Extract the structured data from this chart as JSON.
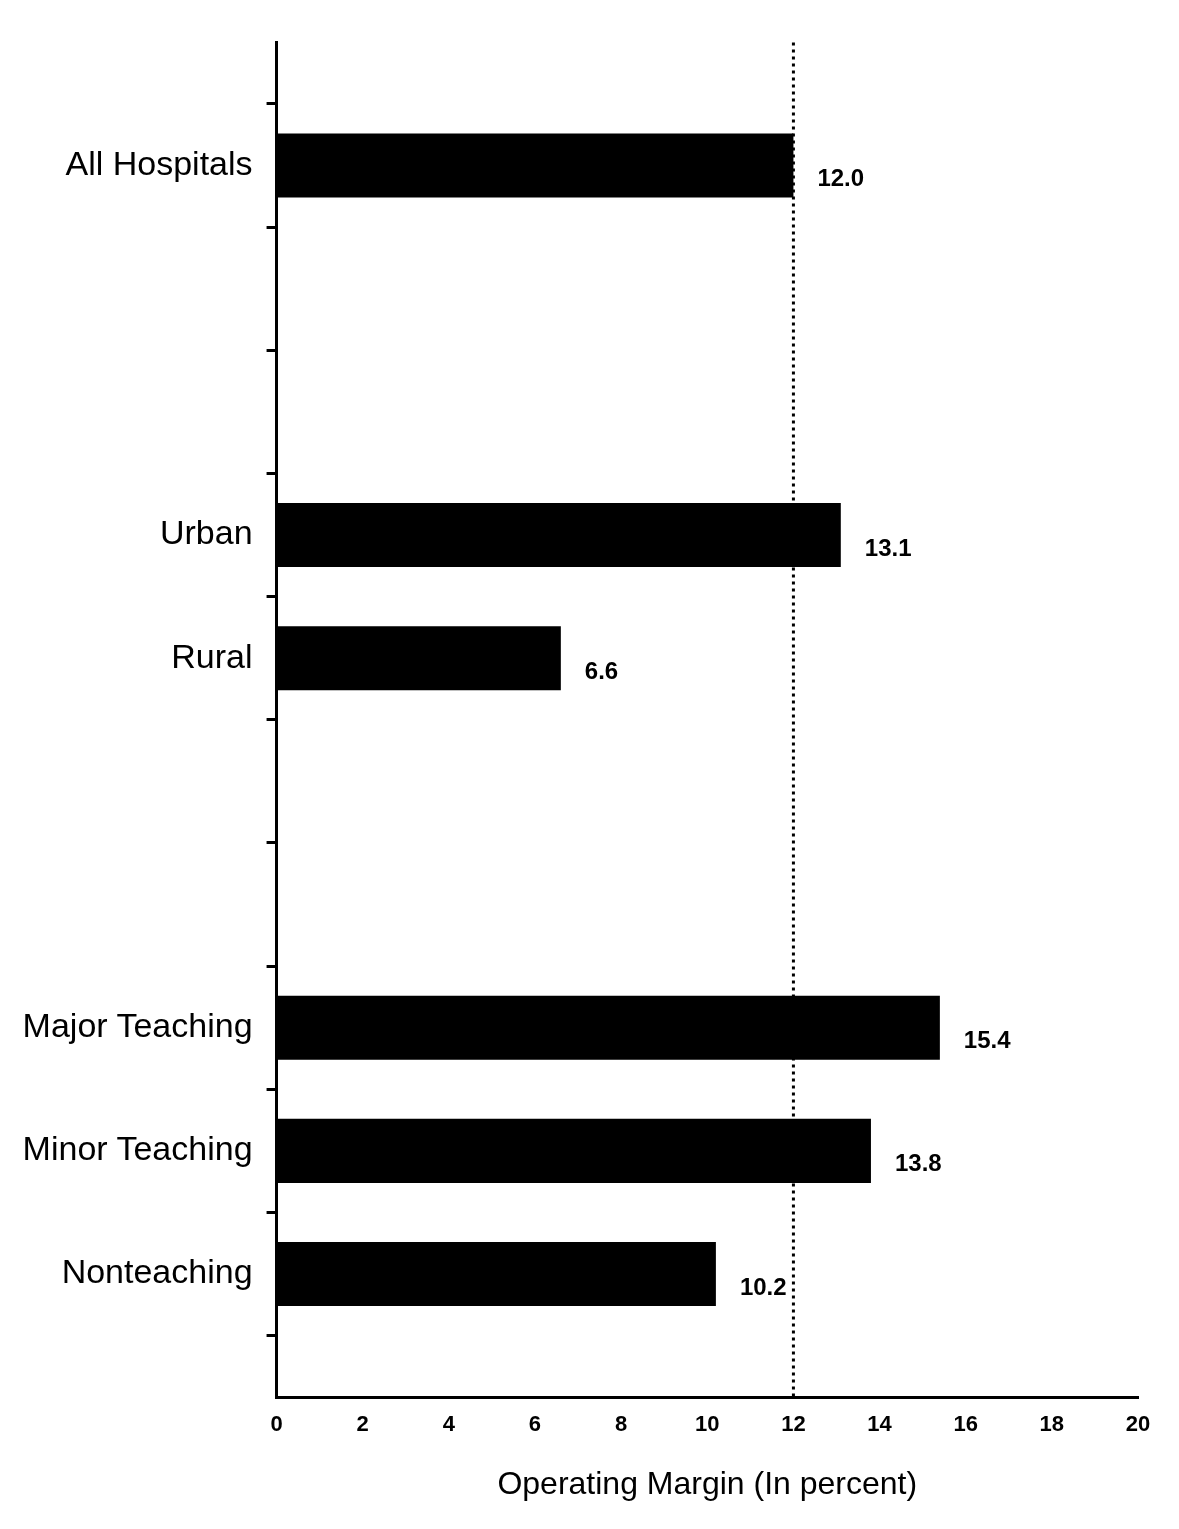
{
  "chart_data": {
    "type": "bar",
    "orientation": "horizontal",
    "categories": [
      null,
      "All Hospitals",
      null,
      null,
      "Urban",
      "Rural",
      null,
      null,
      "Major Teaching",
      "Minor Teaching",
      "Nonteaching",
      null
    ],
    "values": [
      null,
      12.0,
      null,
      null,
      13.1,
      6.6,
      null,
      null,
      15.4,
      13.8,
      10.2,
      null
    ],
    "value_labels": [
      null,
      "12.0",
      null,
      null,
      "13.1",
      "6.6",
      null,
      null,
      "15.4",
      "13.8",
      "10.2",
      null
    ],
    "color": "#000000",
    "xlim": [
      0,
      20
    ],
    "xticks": [
      0,
      2,
      4,
      6,
      8,
      10,
      12,
      14,
      16,
      18,
      20
    ],
    "xlabel": "Operating Margin (In percent)",
    "ref_lines": [
      {
        "axis": "x",
        "value": 12,
        "line_style": "dotted",
        "color": "#000000"
      }
    ]
  }
}
